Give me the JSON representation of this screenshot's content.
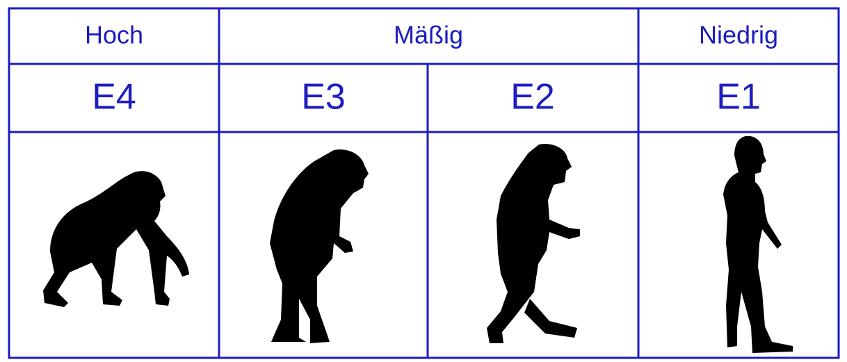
{
  "header": {
    "groups": [
      "Hoch",
      "Mäßig",
      "Niedrig"
    ]
  },
  "levels": [
    "E4",
    "E3",
    "E2",
    "E1"
  ]
}
